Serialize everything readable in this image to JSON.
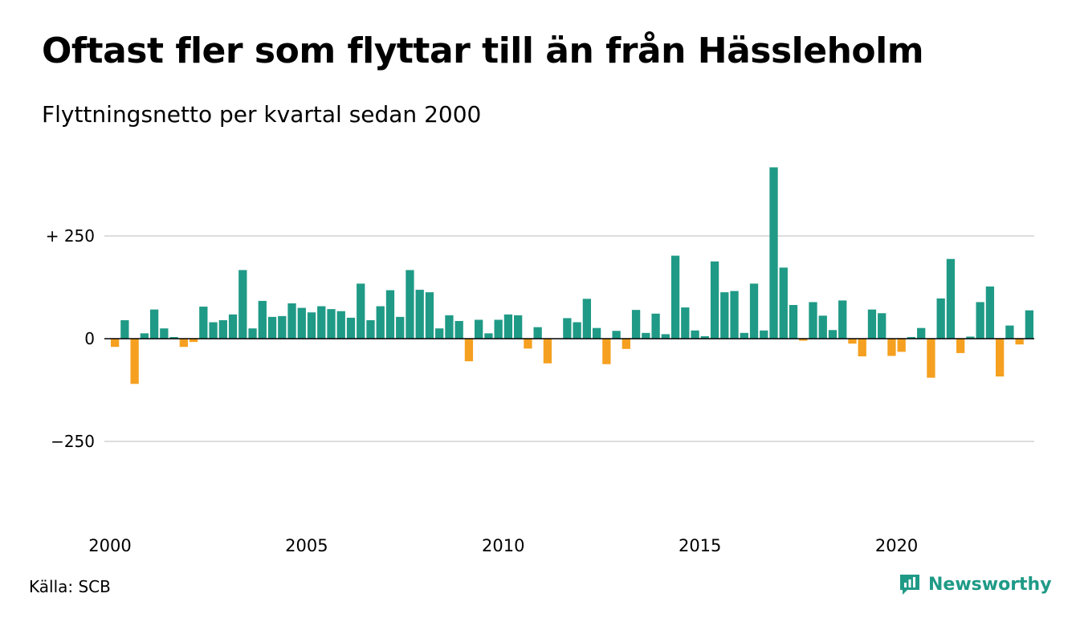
{
  "title": "Oftast fler som flyttar till än från Hässleholm",
  "subtitle": "Flyttningsnetto per kvartal sedan 2000",
  "source": "Källa: SCB",
  "brand": {
    "name": "Newsworthy",
    "icon": "newsworthy-chart-logo-icon",
    "color": "#1f9a86"
  },
  "colors": {
    "positive": "#1f9a86",
    "negative": "#f5a020",
    "grid": "#dddddd",
    "zero": "#000000"
  },
  "chart_data": {
    "type": "bar",
    "title": "Oftast fler som flyttar till än från Hässleholm",
    "subtitle": "Flyttningsnetto per kvartal sedan 2000",
    "xlabel": "",
    "ylabel": "",
    "start_year": 2000,
    "quarters_per_year": 4,
    "ylim": [
      -420,
      420
    ],
    "y_ticks": [
      {
        "value": 250,
        "label": "+ 250"
      },
      {
        "value": 0,
        "label": "0"
      },
      {
        "value": -250,
        "label": "−250"
      }
    ],
    "x_ticks": [
      {
        "year": 2000,
        "label": "2000"
      },
      {
        "year": 2005,
        "label": "2005"
      },
      {
        "year": 2010,
        "label": "2010"
      },
      {
        "year": 2015,
        "label": "2015"
      },
      {
        "year": 2020,
        "label": "2020"
      }
    ],
    "grid": true,
    "values": [
      -20,
      45,
      -110,
      13,
      71,
      25,
      4,
      -20,
      -8,
      78,
      40,
      45,
      59,
      167,
      25,
      92,
      53,
      55,
      86,
      75,
      64,
      79,
      72,
      67,
      51,
      134,
      45,
      79,
      118,
      53,
      167,
      119,
      113,
      25,
      57,
      43,
      -55,
      46,
      13,
      46,
      59,
      57,
      -24,
      28,
      -60,
      0,
      50,
      40,
      97,
      26,
      -62,
      19,
      -25,
      70,
      14,
      61,
      11,
      202,
      76,
      20,
      6,
      188,
      113,
      116,
      14,
      134,
      20,
      417,
      173,
      82,
      -5,
      89,
      56,
      21,
      93,
      -12,
      -43,
      71,
      62,
      -42,
      -32,
      4,
      26,
      -95,
      98,
      194,
      -35,
      5,
      89,
      127,
      -92,
      32,
      -14,
      69
    ]
  }
}
